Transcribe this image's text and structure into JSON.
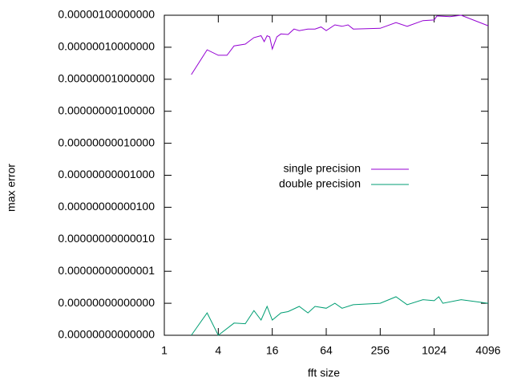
{
  "chart_data": {
    "type": "line",
    "xlabel": "fft size",
    "ylabel": "max error",
    "xlog_base": 2,
    "ylog_base": 10,
    "xlim": [
      1,
      4096
    ],
    "xticks": [
      1,
      4,
      16,
      64,
      256,
      1024,
      4096
    ],
    "ylim": [
      1e-16,
      1e-06
    ],
    "yticks": [
      {
        "value": 1e-16,
        "label": "0.00000000000000"
      },
      {
        "value": 1e-15,
        "label": "0.00000000000000"
      },
      {
        "value": 1e-14,
        "label": "0.00000000000001"
      },
      {
        "value": 1e-13,
        "label": "0.00000000000010"
      },
      {
        "value": 1e-12,
        "label": "0.00000000000100"
      },
      {
        "value": 1e-11,
        "label": "0.00000000001000"
      },
      {
        "value": 1e-10,
        "label": "0.00000000010000"
      },
      {
        "value": 1e-09,
        "label": "0.00000000100000"
      },
      {
        "value": 1e-08,
        "label": "0.00000001000000"
      },
      {
        "value": 1e-07,
        "label": "0.00000010000000"
      },
      {
        "value": 1e-06,
        "label": "0.00000100000000"
      }
    ],
    "legend": "center",
    "series": [
      {
        "name": "single precision",
        "color": "#9400d3",
        "x": [
          2,
          3,
          4,
          5,
          6,
          8,
          10,
          12,
          13,
          14,
          15,
          16,
          18,
          20,
          24,
          28,
          32,
          40,
          48,
          56,
          64,
          80,
          96,
          112,
          128,
          256,
          384,
          512,
          768,
          1024,
          1100,
          1536,
          2048,
          4096
        ],
        "values": [
          1.4e-08,
          8.3e-08,
          5.6e-08,
          5.6e-08,
          1.1e-07,
          1.25e-07,
          2e-07,
          2.3e-07,
          1.5e-07,
          2.3e-07,
          2.1e-07,
          8.8e-08,
          2.1e-07,
          2.6e-07,
          2.5e-07,
          3.7e-07,
          3.3e-07,
          3.7e-07,
          3.7e-07,
          4.3e-07,
          3.3e-07,
          5e-07,
          4.5e-07,
          5e-07,
          3.7e-07,
          3.9e-07,
          5.9e-07,
          4.5e-07,
          6.8e-07,
          7.1e-07,
          9.5e-07,
          9e-07,
          1e-06,
          4.7e-07
        ]
      },
      {
        "name": "double precision",
        "color": "#009e73",
        "x": [
          2,
          3,
          4,
          6,
          8,
          10,
          12,
          14,
          16,
          20,
          24,
          32,
          40,
          48,
          64,
          80,
          96,
          128,
          256,
          384,
          512,
          768,
          1024,
          1152,
          1280,
          2048,
          4096
        ],
        "values": [
          1e-16,
          5e-16,
          1e-16,
          2.4e-16,
          2.3e-16,
          5.9e-16,
          3e-16,
          8e-16,
          3e-16,
          5e-16,
          5.5e-16,
          8e-16,
          5e-16,
          8e-16,
          7e-16,
          1e-15,
          7e-16,
          9e-16,
          1e-15,
          1.6e-15,
          9e-16,
          1.3e-15,
          1.2e-15,
          1.6e-15,
          1e-15,
          1.3e-15,
          1e-15
        ]
      }
    ]
  }
}
